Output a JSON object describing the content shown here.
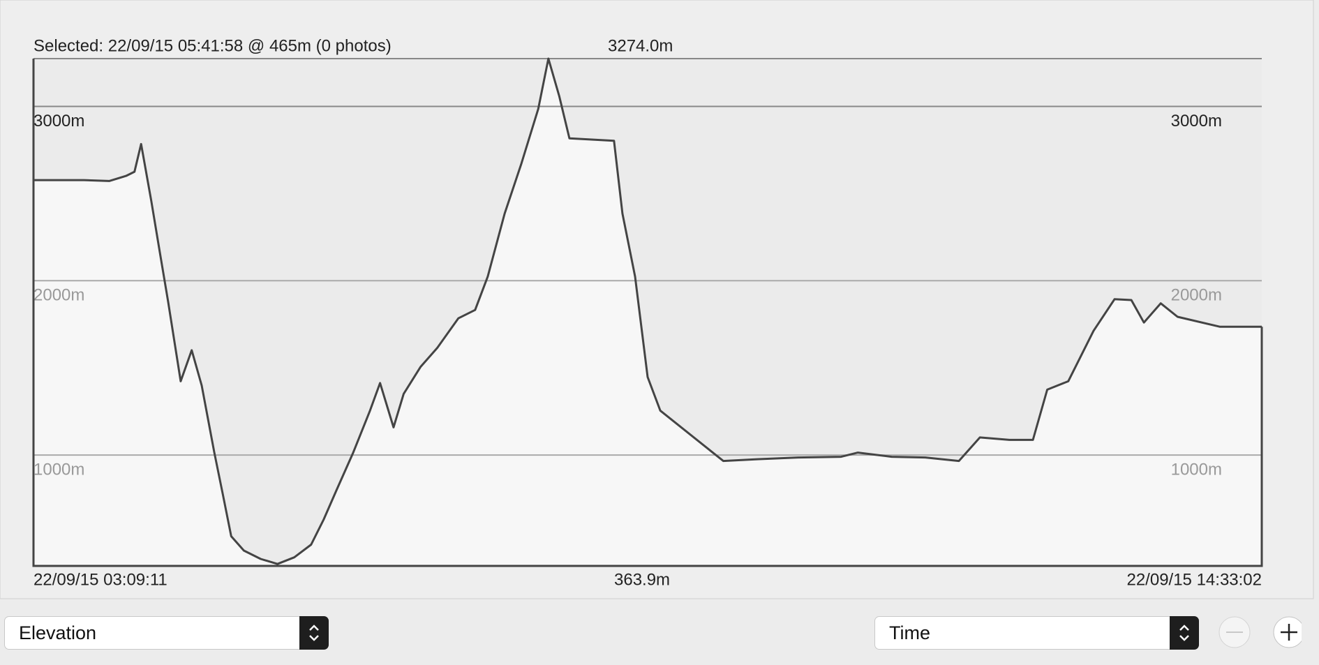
{
  "chart_data": {
    "type": "line",
    "selected_label": "Selected: 22/09/15 05:41:58 @ 465m (0 photos)",
    "max_label": "3274.0m",
    "min_label": "363.9m",
    "xlim": [
      3.1531,
      14.5506
    ],
    "xticks": [
      {
        "value": 3.1531,
        "label": "22/09/15 03:09:11"
      },
      {
        "value": 14.5506,
        "label": "22/09/15 14:33:02"
      }
    ],
    "ylim": [
      363.9,
      3274.0
    ],
    "yticks": [
      {
        "value": 1000,
        "label": "1000m"
      },
      {
        "value": 2000,
        "label": "2000m"
      },
      {
        "value": 3000,
        "label": "3000m"
      }
    ],
    "grid": true,
    "color": "#444444",
    "x": [
      3.153,
      3.309,
      3.622,
      3.856,
      4.012,
      4.09,
      4.152,
      4.246,
      4.324,
      4.402,
      4.519,
      4.621,
      4.714,
      4.831,
      4.91,
      4.988,
      5.105,
      5.261,
      5.417,
      5.573,
      5.729,
      5.846,
      5.964,
      6.12,
      6.276,
      6.369,
      6.494,
      6.588,
      6.744,
      6.9,
      7.095,
      7.251,
      7.368,
      7.525,
      7.681,
      7.837,
      7.931,
      8.032,
      8.126,
      8.54,
      8.618,
      8.735,
      8.852,
      8.969,
      9.554,
      9.867,
      10.257,
      10.647,
      10.803,
      11.116,
      11.428,
      11.74,
      11.935,
      12.209,
      12.427,
      12.56,
      12.755,
      12.989,
      13.184,
      13.34,
      13.457,
      13.613,
      13.769,
      14.16,
      14.551
    ],
    "values": [
      2577,
      2577,
      2577,
      2572,
      2601,
      2625,
      2784,
      2457,
      2168,
      1880,
      1423,
      1601,
      1399,
      1014,
      774,
      534,
      452,
      404,
      375,
      413,
      486,
      630,
      798,
      1014,
      1255,
      1413,
      1159,
      1351,
      1505,
      1615,
      1784,
      1832,
      2024,
      2385,
      2673,
      2986,
      3274,
      3058,
      2817,
      2803,
      2385,
      2024,
      1447,
      1255,
      966,
      976,
      986,
      990,
      1014,
      990,
      986,
      966,
      1101,
      1087,
      1087,
      1375,
      1423,
      1712,
      1894,
      1889,
      1760,
      1870,
      1793,
      1736,
      1736
    ]
  },
  "controls": {
    "left_select": "Elevation",
    "right_select": "Time"
  }
}
